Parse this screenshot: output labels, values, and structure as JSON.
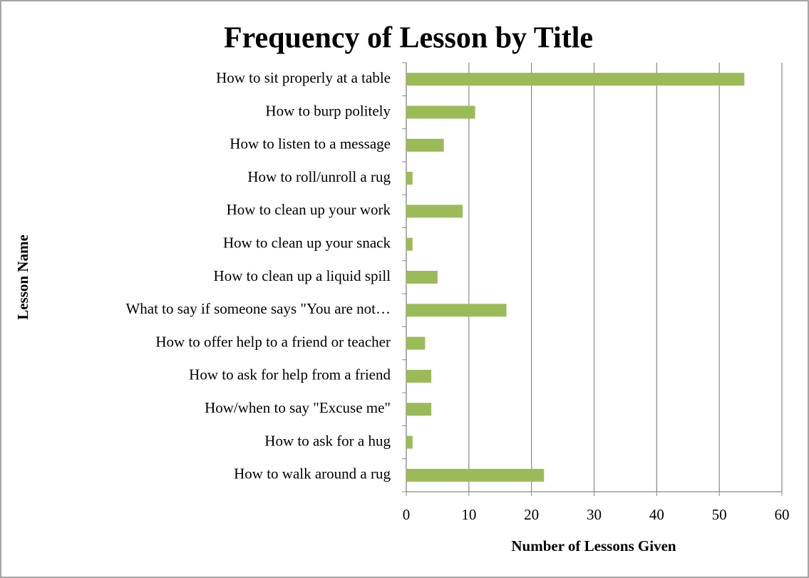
{
  "chart_data": {
    "type": "bar",
    "orientation": "horizontal",
    "title": "Frequency of Lesson by Title",
    "x_label": "Number of Lessons Given",
    "y_label": "Lesson Name",
    "categories": [
      "How to sit properly at a table",
      "How to burp politely",
      "How to listen to a message",
      "How to roll/unroll a rug",
      "How to clean up your work",
      "How to clean up your snack",
      "How to clean up a liquid spill",
      "What to say if someone says \"You are not…",
      "How to offer help to a friend or teacher",
      "How to ask for help from a friend",
      "How/when to say \"Excuse me\"",
      "How to ask for a hug",
      "How to walk around a rug"
    ],
    "values": [
      54,
      11,
      6,
      1,
      9,
      1,
      5,
      16,
      3,
      4,
      4,
      1,
      22
    ],
    "color": "#9bbb59",
    "xlim": [
      0,
      60
    ],
    "xticks": [
      0,
      10,
      20,
      30,
      40,
      50,
      60
    ],
    "grid": true
  }
}
